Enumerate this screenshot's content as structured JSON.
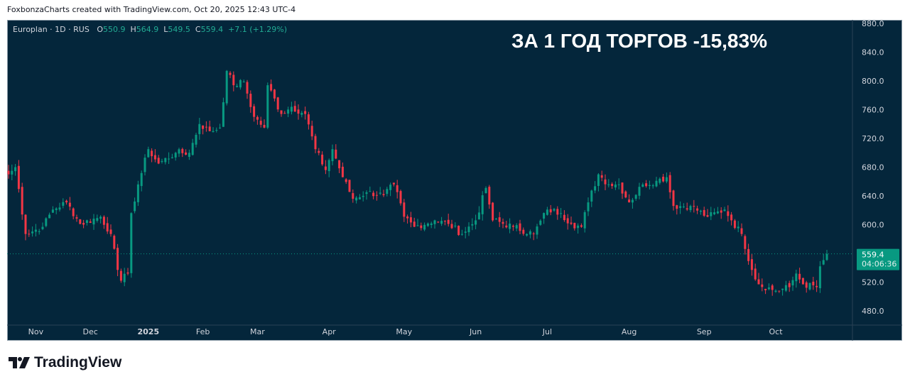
{
  "header": {
    "credit": "FoxbonzaCharts created with TradingView.com, Oct 20, 2025 12:43 UTC-4"
  },
  "legend": {
    "symbol": "Europlan · 1D · RUS",
    "o_label": "O",
    "o": "550.9",
    "h_label": "H",
    "h": "564.9",
    "l_label": "L",
    "l": "549.5",
    "c_label": "C",
    "c": "559.4",
    "change": "+7.1 (+1.29%)"
  },
  "annotation": "ЗА 1 ГОД ТОРГОВ -15,83%",
  "price_tag": {
    "price": "559.4",
    "countdown": "04:06:36"
  },
  "footer": {
    "brand": "TradingView"
  },
  "colors": {
    "up": "#089981",
    "down": "#f23645",
    "background": "#04263b",
    "axis_text": "#d1d4dc"
  },
  "chart_data": {
    "type": "candlestick",
    "title": "Europlan · 1D · RUS",
    "ylim": [
      470,
      885
    ],
    "y_ticks": [
      "880.0",
      "840.0",
      "800.0",
      "760.0",
      "720.0",
      "680.0",
      "640.0",
      "600.0",
      "520.0",
      "480.0"
    ],
    "x_ticks": [
      {
        "label": "Nov",
        "i": 8
      },
      {
        "label": "Dec",
        "i": 24
      },
      {
        "label": "2025",
        "i": 41
      },
      {
        "label": "Feb",
        "i": 57
      },
      {
        "label": "Mar",
        "i": 73
      },
      {
        "label": "Apr",
        "i": 94
      },
      {
        "label": "May",
        "i": 116
      },
      {
        "label": "Jun",
        "i": 137
      },
      {
        "label": "Jul",
        "i": 158
      },
      {
        "label": "Aug",
        "i": 182
      },
      {
        "label": "Sep",
        "i": 204
      },
      {
        "label": "Oct",
        "i": 225
      }
    ],
    "candle_count": 241,
    "close_keypoints": [
      [
        0,
        670
      ],
      [
        2,
        680
      ],
      [
        5,
        587
      ],
      [
        10,
        597
      ],
      [
        13,
        621
      ],
      [
        17,
        631
      ],
      [
        21,
        601
      ],
      [
        27,
        611
      ],
      [
        30,
        587
      ],
      [
        32,
        537
      ],
      [
        33,
        522
      ],
      [
        35,
        532
      ],
      [
        36,
        616
      ],
      [
        38,
        656
      ],
      [
        41,
        705
      ],
      [
        44,
        685
      ],
      [
        49,
        700
      ],
      [
        53,
        700
      ],
      [
        56,
        740
      ],
      [
        59,
        730
      ],
      [
        62,
        735
      ],
      [
        64,
        814
      ],
      [
        66,
        794
      ],
      [
        69,
        799
      ],
      [
        72,
        750
      ],
      [
        75,
        735
      ],
      [
        76,
        794
      ],
      [
        80,
        754
      ],
      [
        83,
        764
      ],
      [
        87,
        754
      ],
      [
        90,
        705
      ],
      [
        93,
        676
      ],
      [
        95,
        705
      ],
      [
        98,
        666
      ],
      [
        101,
        636
      ],
      [
        105,
        645
      ],
      [
        110,
        641
      ],
      [
        113,
        656
      ],
      [
        116,
        611
      ],
      [
        119,
        597
      ],
      [
        125,
        606
      ],
      [
        129,
        601
      ],
      [
        133,
        587
      ],
      [
        137,
        606
      ],
      [
        140,
        651
      ],
      [
        142,
        606
      ],
      [
        148,
        597
      ],
      [
        154,
        587
      ],
      [
        158,
        621
      ],
      [
        162,
        616
      ],
      [
        165,
        601
      ],
      [
        168,
        597
      ],
      [
        170,
        631
      ],
      [
        173,
        670
      ],
      [
        176,
        656
      ],
      [
        179,
        656
      ],
      [
        182,
        631
      ],
      [
        186,
        656
      ],
      [
        190,
        661
      ],
      [
        193,
        666
      ],
      [
        195,
        626
      ],
      [
        200,
        626
      ],
      [
        205,
        611
      ],
      [
        210,
        621
      ],
      [
        212,
        606
      ],
      [
        215,
        587
      ],
      [
        218,
        537
      ],
      [
        220,
        517
      ],
      [
        225,
        508
      ],
      [
        229,
        513
      ],
      [
        231,
        532
      ],
      [
        233,
        517
      ],
      [
        237,
        513
      ],
      [
        238,
        542
      ],
      [
        240,
        559.4
      ]
    ],
    "last_candle": {
      "open": 550.9,
      "high": 564.9,
      "low": 549.5,
      "close": 559.4
    }
  }
}
